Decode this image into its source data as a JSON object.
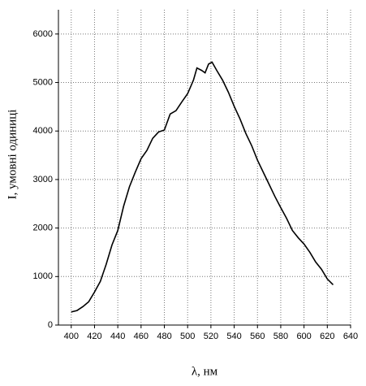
{
  "chart_data": {
    "type": "line",
    "x_label": "λ, нм",
    "y_label": "I, умовні одиниці",
    "x": [
      400,
      405,
      410,
      415,
      420,
      425,
      430,
      435,
      440,
      445,
      450,
      455,
      460,
      465,
      470,
      475,
      480,
      485,
      490,
      495,
      500,
      505,
      508,
      512,
      515,
      518,
      521,
      525,
      530,
      535,
      540,
      545,
      550,
      555,
      560,
      565,
      570,
      575,
      580,
      585,
      590,
      595,
      600,
      605,
      610,
      615,
      620,
      625
    ],
    "series": [
      {
        "color": "#000000",
        "values": [
          270,
          300,
          380,
          480,
          680,
          900,
          1250,
          1650,
          1950,
          2450,
          2850,
          3150,
          3430,
          3600,
          3850,
          3980,
          4020,
          4350,
          4420,
          4600,
          4770,
          5050,
          5300,
          5250,
          5200,
          5380,
          5420,
          5250,
          5050,
          4800,
          4510,
          4250,
          3950,
          3700,
          3400,
          3150,
          2900,
          2650,
          2420,
          2200,
          1950,
          1800,
          1670,
          1500,
          1300,
          1150,
          950,
          830
        ]
      }
    ],
    "xlim": [
      389,
      640
    ],
    "ylim": [
      0,
      6500
    ],
    "xticks": [
      400,
      420,
      440,
      460,
      480,
      500,
      520,
      540,
      560,
      580,
      600,
      620,
      640
    ],
    "yticks": [
      0,
      1000,
      2000,
      3000,
      4000,
      5000,
      6000
    ],
    "grid": true
  }
}
